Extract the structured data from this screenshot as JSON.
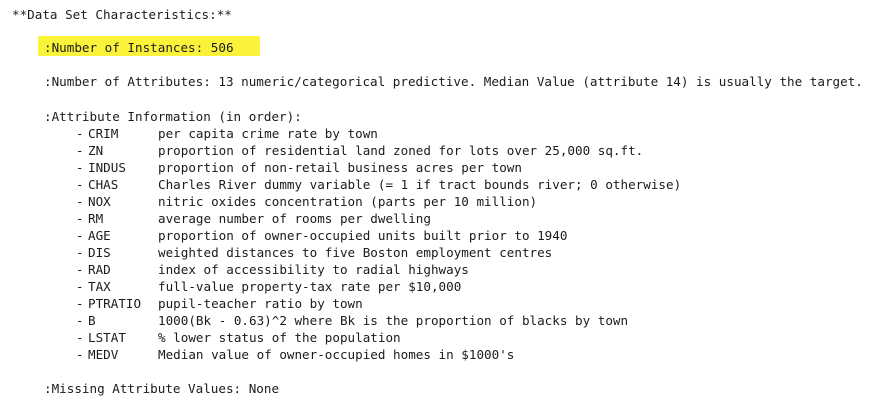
{
  "heading": "**Data Set Characteristics:**",
  "instances": ":Number of Instances: 506",
  "attributes": ":Number of Attributes: 13 numeric/categorical predictive. Median Value (attribute 14) is usually the target.",
  "attribute_heading": ":Attribute Information (in order):",
  "bullet": "-",
  "attribute_list": [
    {
      "code": "CRIM",
      "desc": "per capita crime rate by town"
    },
    {
      "code": "ZN",
      "desc": "proportion of residential land zoned for lots over 25,000 sq.ft."
    },
    {
      "code": "INDUS",
      "desc": "proportion of non-retail business acres per town"
    },
    {
      "code": "CHAS",
      "desc": "Charles River dummy variable (= 1 if tract bounds river; 0 otherwise)"
    },
    {
      "code": "NOX",
      "desc": "nitric oxides concentration (parts per 10 million)"
    },
    {
      "code": "RM",
      "desc": "average number of rooms per dwelling"
    },
    {
      "code": "AGE",
      "desc": "proportion of owner-occupied units built prior to 1940"
    },
    {
      "code": "DIS",
      "desc": "weighted distances to five Boston employment centres"
    },
    {
      "code": "RAD",
      "desc": "index of accessibility to radial highways"
    },
    {
      "code": "TAX",
      "desc": "full-value property-tax rate per $10,000"
    },
    {
      "code": "PTRATIO",
      "desc": "pupil-teacher ratio by town"
    },
    {
      "code": "B",
      "desc": "1000(Bk - 0.63)^2 where Bk is the proportion of blacks by town"
    },
    {
      "code": "LSTAT",
      "desc": "% lower status of the population"
    },
    {
      "code": "MEDV",
      "desc": "Median value of owner-occupied homes in $1000's"
    }
  ],
  "missing": ":Missing Attribute Values: None",
  "colors": {
    "highlight": "#fbf33a",
    "text": "#1b1b1b",
    "background": "#ffffff"
  }
}
